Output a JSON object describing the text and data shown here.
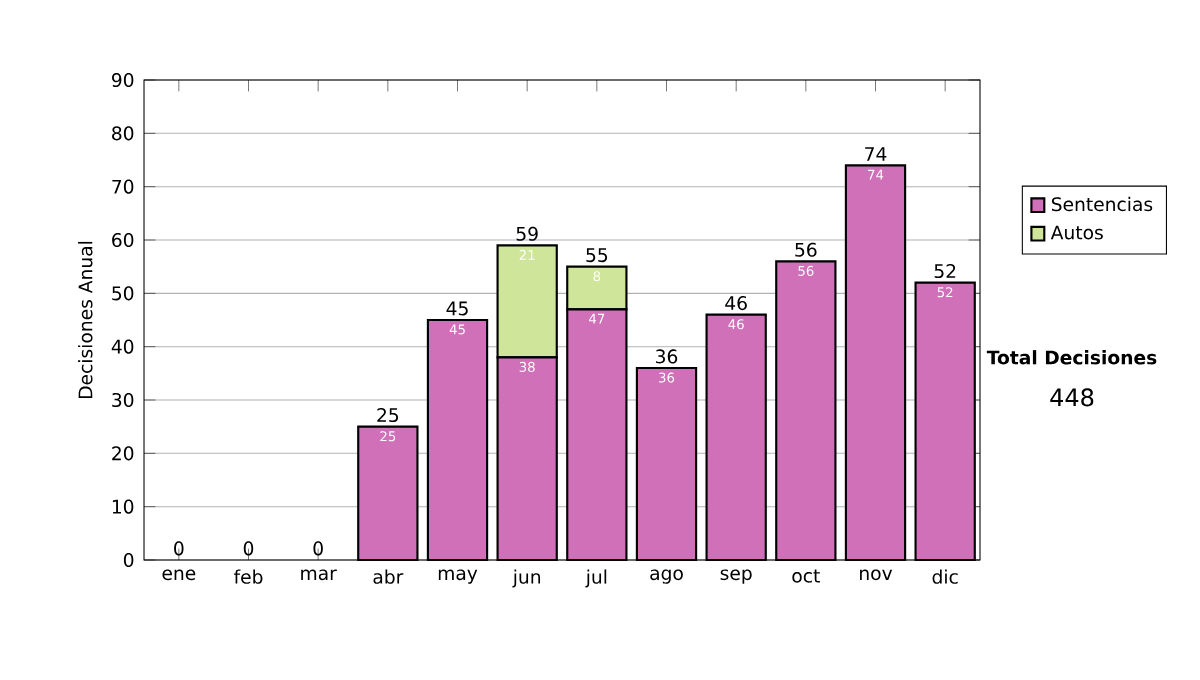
{
  "chart_data": {
    "type": "bar",
    "stacked": true,
    "ylabel": "Decisiones Anual",
    "categories": [
      "ene",
      "feb",
      "mar",
      "abr",
      "may",
      "jun",
      "jul",
      "ago",
      "sep",
      "oct",
      "nov",
      "dic"
    ],
    "series": [
      {
        "name": "Sentencias",
        "color": "#d070b8",
        "values": [
          0,
          0,
          0,
          25,
          45,
          38,
          47,
          36,
          46,
          56,
          74,
          52
        ],
        "value_labels": [
          null,
          null,
          null,
          "25",
          "45",
          "38",
          "47",
          "36",
          "46",
          "56",
          "74",
          "52"
        ]
      },
      {
        "name": "Autos",
        "color": "#cfe69a",
        "values": [
          0,
          0,
          0,
          0,
          0,
          21,
          8,
          0,
          0,
          0,
          0,
          0
        ],
        "value_labels": [
          null,
          null,
          null,
          null,
          null,
          "21",
          "8",
          null,
          null,
          null,
          null,
          null
        ]
      }
    ],
    "totals": [
      "0",
      "0",
      "0",
      "25",
      "45",
      "59",
      "55",
      "36",
      "46",
      "56",
      "74",
      "52"
    ],
    "ylim": [
      0,
      90
    ],
    "yticks": [
      0,
      10,
      20,
      30,
      40,
      50,
      60,
      70,
      80,
      90
    ],
    "grid": "y",
    "legend": "right",
    "annotations": [
      "Total Decisiones",
      "448"
    ]
  }
}
